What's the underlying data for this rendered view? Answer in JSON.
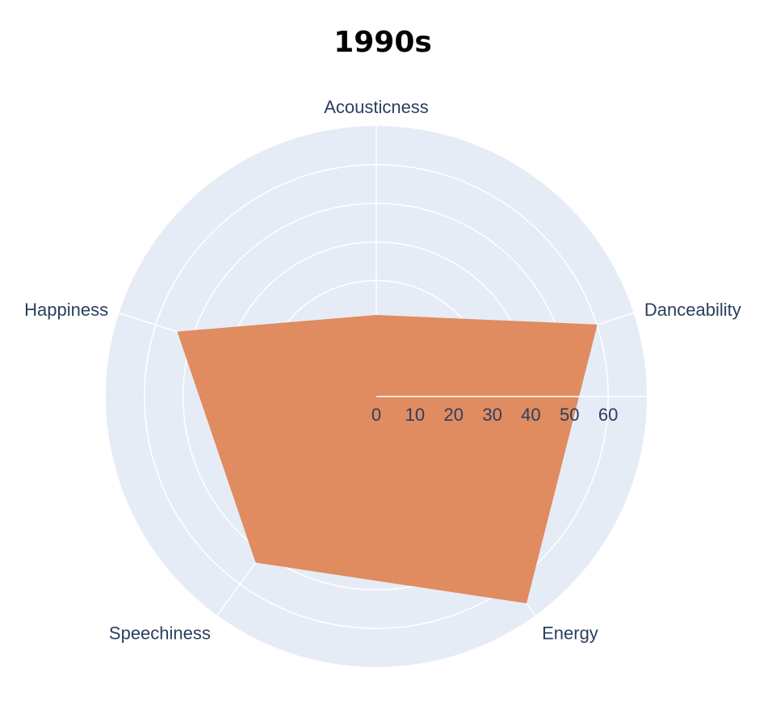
{
  "chart_data": {
    "type": "radar",
    "title": "1990s",
    "axes": [
      "Acousticness",
      "Danceability",
      "Energy",
      "Speechiness",
      "Happiness"
    ],
    "series": [
      {
        "values": [
          21,
          60,
          66,
          53,
          54
        ],
        "color": "#e08b60"
      }
    ],
    "radial_ticks": [
      0,
      10,
      20,
      30,
      40,
      50,
      60
    ],
    "radial_range": [
      0,
      70
    ],
    "grid": true,
    "background_color": "#e5ecf6",
    "grid_color": "#ffffff"
  }
}
